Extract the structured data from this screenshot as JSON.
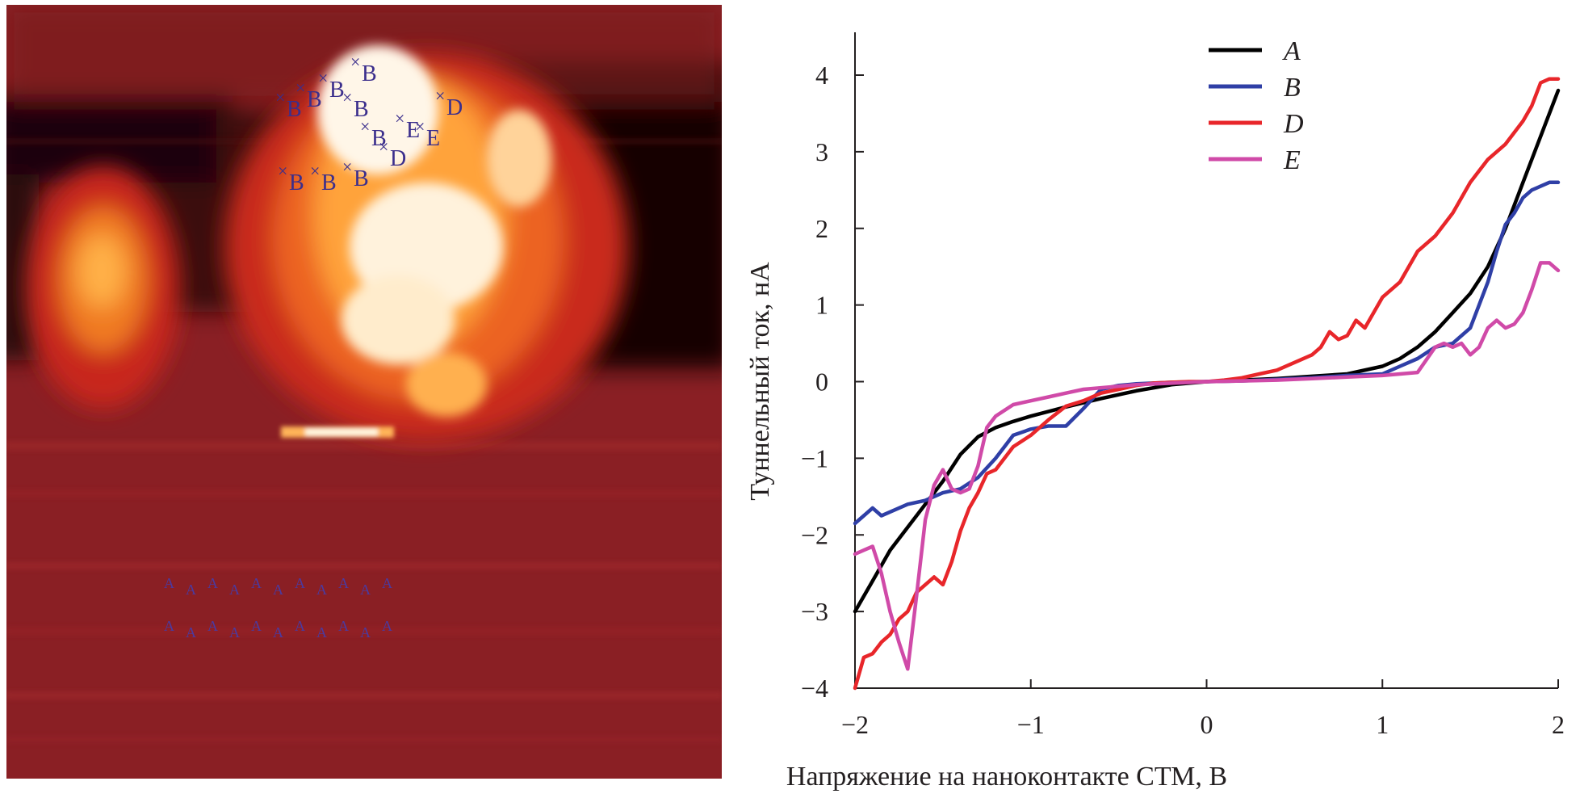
{
  "stm_image": {
    "markers": [
      {
        "label": "B"
      },
      {
        "label": "B"
      },
      {
        "label": "B"
      },
      {
        "label": "B"
      },
      {
        "label": "B"
      },
      {
        "label": "D"
      },
      {
        "label": "E"
      },
      {
        "label": "B"
      },
      {
        "label": "E"
      },
      {
        "label": "D"
      },
      {
        "label": "B"
      },
      {
        "label": "B"
      },
      {
        "label": "B"
      }
    ],
    "lower_marker_row_1": [
      "A",
      "A",
      "A",
      "A",
      "A",
      "A",
      "A",
      "A",
      "A",
      "A",
      "A"
    ],
    "lower_marker_row_2": [
      "A",
      "A",
      "A",
      "A",
      "A",
      "A",
      "A",
      "A",
      "A",
      "A",
      "A"
    ]
  },
  "chart_data": {
    "type": "line",
    "xlabel": "Напряжение на наноконтакте СТМ, В",
    "ylabel": "Туннельный ток, нА",
    "xlim": [
      -2,
      2
    ],
    "ylim": [
      -4,
      4.5
    ],
    "x_ticks": [
      -2,
      -1,
      0,
      1,
      2
    ],
    "x_tick_labels": [
      "−2",
      "−1",
      "0",
      "1",
      "2"
    ],
    "y_ticks": [
      -4,
      -3,
      -2,
      -1,
      0,
      1,
      2,
      3,
      4
    ],
    "y_tick_labels": [
      "−4",
      "−3",
      "−2",
      "−1",
      "0",
      "1",
      "2",
      "3",
      "4"
    ],
    "grid": false,
    "legend_position": "top-center",
    "series": [
      {
        "name": "A",
        "color": "#000000",
        "x": [
          -2,
          -1.9,
          -1.8,
          -1.7,
          -1.6,
          -1.5,
          -1.4,
          -1.3,
          -1.2,
          -1.1,
          -1.0,
          -0.8,
          -0.6,
          -0.4,
          -0.2,
          0,
          0.2,
          0.4,
          0.6,
          0.8,
          1.0,
          1.1,
          1.2,
          1.3,
          1.4,
          1.5,
          1.6,
          1.7,
          1.8,
          1.9,
          2.0
        ],
        "y": [
          -3.0,
          -2.6,
          -2.2,
          -1.9,
          -1.6,
          -1.3,
          -0.95,
          -0.72,
          -0.6,
          -0.52,
          -0.45,
          -0.33,
          -0.22,
          -0.12,
          -0.04,
          0,
          0.02,
          0.04,
          0.07,
          0.1,
          0.2,
          0.3,
          0.45,
          0.65,
          0.9,
          1.15,
          1.5,
          2.0,
          2.6,
          3.2,
          3.8
        ]
      },
      {
        "name": "B",
        "color": "#2f3fa6",
        "x": [
          -2,
          -1.95,
          -1.9,
          -1.85,
          -1.8,
          -1.7,
          -1.6,
          -1.5,
          -1.4,
          -1.3,
          -1.2,
          -1.1,
          -1.0,
          -0.9,
          -0.8,
          -0.7,
          -0.6,
          -0.5,
          -0.4,
          -0.2,
          0,
          0.2,
          0.4,
          0.6,
          0.8,
          1.0,
          1.1,
          1.2,
          1.3,
          1.4,
          1.5,
          1.6,
          1.65,
          1.7,
          1.75,
          1.8,
          1.85,
          1.9,
          1.95,
          2.0
        ],
        "y": [
          -1.85,
          -1.75,
          -1.65,
          -1.75,
          -1.7,
          -1.6,
          -1.55,
          -1.45,
          -1.4,
          -1.25,
          -1.0,
          -0.7,
          -0.62,
          -0.58,
          -0.58,
          -0.35,
          -0.1,
          -0.05,
          -0.03,
          -0.01,
          0,
          0.01,
          0.03,
          0.05,
          0.08,
          0.1,
          0.2,
          0.3,
          0.45,
          0.5,
          0.7,
          1.3,
          1.7,
          2.05,
          2.2,
          2.4,
          2.5,
          2.55,
          2.6,
          2.6
        ]
      },
      {
        "name": "D",
        "color": "#e8262a",
        "x": [
          -2,
          -1.95,
          -1.9,
          -1.85,
          -1.8,
          -1.75,
          -1.7,
          -1.65,
          -1.6,
          -1.55,
          -1.5,
          -1.45,
          -1.4,
          -1.35,
          -1.3,
          -1.25,
          -1.2,
          -1.1,
          -1.0,
          -0.9,
          -0.8,
          -0.7,
          -0.6,
          -0.5,
          -0.4,
          -0.3,
          -0.2,
          -0.1,
          0,
          0.1,
          0.2,
          0.3,
          0.4,
          0.5,
          0.6,
          0.65,
          0.7,
          0.75,
          0.8,
          0.85,
          0.9,
          1.0,
          1.1,
          1.2,
          1.3,
          1.4,
          1.5,
          1.6,
          1.7,
          1.8,
          1.85,
          1.9,
          1.95,
          2.0
        ],
        "y": [
          -4.0,
          -3.6,
          -3.55,
          -3.4,
          -3.3,
          -3.1,
          -3.0,
          -2.75,
          -2.65,
          -2.55,
          -2.65,
          -2.35,
          -1.95,
          -1.65,
          -1.45,
          -1.2,
          -1.15,
          -0.85,
          -0.7,
          -0.5,
          -0.32,
          -0.25,
          -0.15,
          -0.1,
          -0.05,
          -0.02,
          -0.01,
          0,
          0,
          0.02,
          0.05,
          0.1,
          0.15,
          0.25,
          0.35,
          0.45,
          0.65,
          0.55,
          0.6,
          0.8,
          0.7,
          1.1,
          1.3,
          1.7,
          1.9,
          2.2,
          2.6,
          2.9,
          3.1,
          3.4,
          3.6,
          3.9,
          3.95,
          3.95
        ]
      },
      {
        "name": "E",
        "color": "#d04aa8",
        "x": [
          -2,
          -1.95,
          -1.9,
          -1.85,
          -1.8,
          -1.75,
          -1.7,
          -1.65,
          -1.6,
          -1.55,
          -1.5,
          -1.45,
          -1.4,
          -1.35,
          -1.3,
          -1.25,
          -1.2,
          -1.1,
          -1.0,
          -0.9,
          -0.8,
          -0.7,
          -0.6,
          -0.4,
          -0.2,
          0,
          0.2,
          0.4,
          0.6,
          0.8,
          1.0,
          1.1,
          1.2,
          1.3,
          1.35,
          1.4,
          1.45,
          1.5,
          1.55,
          1.6,
          1.65,
          1.7,
          1.75,
          1.8,
          1.85,
          1.9,
          1.95,
          2.0
        ],
        "y": [
          -2.25,
          -2.2,
          -2.15,
          -2.5,
          -3.0,
          -3.4,
          -3.75,
          -2.8,
          -1.8,
          -1.35,
          -1.15,
          -1.4,
          -1.45,
          -1.4,
          -1.1,
          -0.6,
          -0.45,
          -0.3,
          -0.25,
          -0.2,
          -0.15,
          -0.1,
          -0.08,
          -0.04,
          -0.02,
          0,
          0.01,
          0.02,
          0.04,
          0.06,
          0.08,
          0.1,
          0.12,
          0.45,
          0.5,
          0.45,
          0.5,
          0.35,
          0.45,
          0.7,
          0.8,
          0.7,
          0.75,
          0.9,
          1.2,
          1.55,
          1.55,
          1.45
        ]
      }
    ]
  }
}
